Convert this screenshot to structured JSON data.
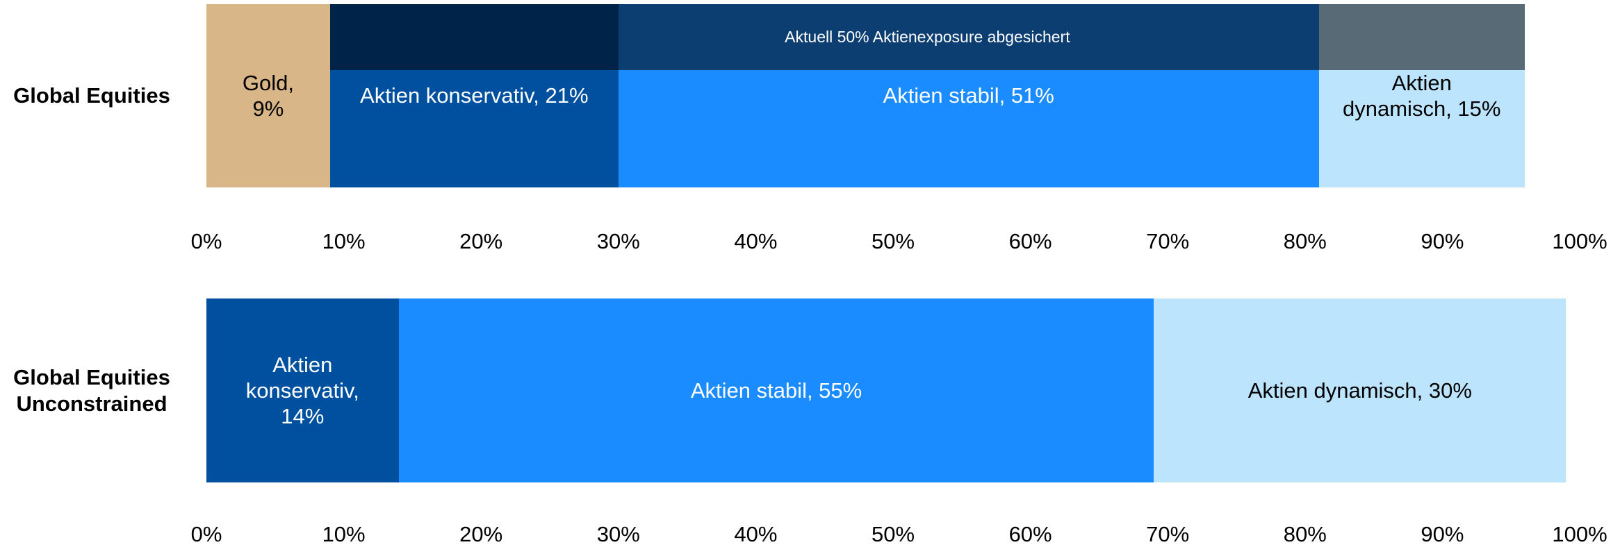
{
  "chart_data": [
    {
      "type": "stacked-bar-horizontal",
      "category": "Global Equities",
      "series": [
        {
          "color": "#d9b688",
          "label_color": "#000000",
          "values": [
            9
          ],
          "value_labels": [
            "Gold, 9%"
          ]
        },
        {
          "color": "#0050a0",
          "label_color": "#ffffff",
          "overlay_color": "#00234a",
          "values": [
            21
          ],
          "value_labels": [
            "Aktien konservativ, 21%"
          ]
        },
        {
          "color": "#1a8cff",
          "label_color": "#ffffff",
          "overlay_color": "#0d3e72",
          "values": [
            51
          ],
          "value_labels": [
            "Aktien stabil, 51%"
          ]
        },
        {
          "color": "#bde4fd",
          "label_color": "#000000",
          "overlay_color": "#596a77",
          "values": [
            15
          ],
          "value_labels": [
            "Aktien dynamisch, 15%"
          ]
        }
      ],
      "annotation": "Aktuell 50% Aktienexposure abgesichert",
      "xlim": [
        0,
        100
      ],
      "xticks": [
        {
          "value": 0,
          "label": "0%"
        },
        {
          "value": 10,
          "label": "10%"
        },
        {
          "value": 20,
          "label": "20%"
        },
        {
          "value": 30,
          "label": "30%"
        },
        {
          "value": 40,
          "label": "40%"
        },
        {
          "value": 50,
          "label": "50%"
        },
        {
          "value": 60,
          "label": "60%"
        },
        {
          "value": 70,
          "label": "70%"
        },
        {
          "value": 80,
          "label": "80%"
        },
        {
          "value": 90,
          "label": "90%"
        },
        {
          "value": 100,
          "label": "100%"
        }
      ]
    },
    {
      "type": "stacked-bar-horizontal",
      "category": "Global Equities Unconstrained",
      "series": [
        {
          "color": "#0050a0",
          "label_color": "#ffffff",
          "values": [
            14
          ],
          "value_labels": [
            "Aktien konservativ, 14%"
          ]
        },
        {
          "color": "#1a8cff",
          "label_color": "#ffffff",
          "values": [
            55
          ],
          "value_labels": [
            "Aktien stabil, 55%"
          ]
        },
        {
          "color": "#bde4fd",
          "label_color": "#000000",
          "values": [
            30
          ],
          "value_labels": [
            "Aktien dynamisch, 30%"
          ]
        }
      ],
      "xlim": [
        0,
        100
      ],
      "xticks": [
        {
          "value": 0,
          "label": "0%"
        },
        {
          "value": 10,
          "label": "10%"
        },
        {
          "value": 20,
          "label": "20%"
        },
        {
          "value": 30,
          "label": "30%"
        },
        {
          "value": 40,
          "label": "40%"
        },
        {
          "value": 50,
          "label": "50%"
        },
        {
          "value": 60,
          "label": "60%"
        },
        {
          "value": 70,
          "label": "70%"
        },
        {
          "value": 80,
          "label": "80%"
        },
        {
          "value": 90,
          "label": "90%"
        },
        {
          "value": 100,
          "label": "100%"
        }
      ]
    }
  ]
}
